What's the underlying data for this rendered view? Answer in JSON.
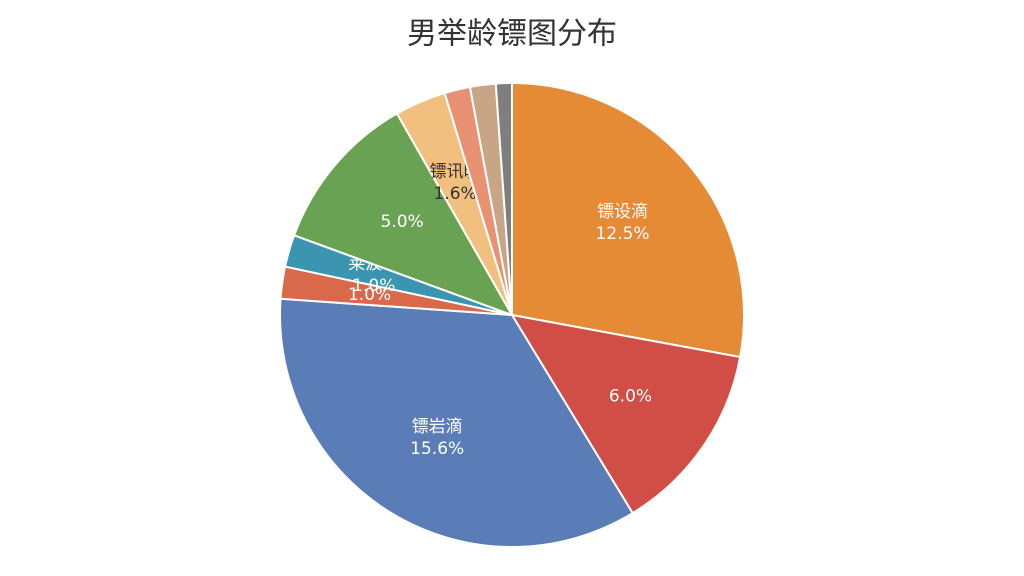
{
  "chart_data": {
    "type": "pie",
    "title": "男举龄镖图分布",
    "categories": [
      "镖设滴",
      null,
      "镖岩滴",
      null,
      "莱波均",
      null,
      "镖讯晚",
      null,
      null,
      null
    ],
    "values": [
      12.5,
      6.0,
      15.6,
      1.0,
      1.0,
      5.0,
      1.6,
      0.8,
      0.8,
      0.5
    ],
    "value_labels": [
      "12.5%",
      "6.0%",
      "15.6%",
      "1.0%",
      "1.0%",
      "5.0%",
      "1.6%",
      null,
      null,
      null
    ],
    "colors": [
      "#e58a35",
      "#d04e45",
      "#5a7db8",
      "#d9694a",
      "#3b95b0",
      "#6aa253",
      "#f2c07e",
      "#e99273",
      "#c8a585",
      "#7f7f7f"
    ]
  }
}
